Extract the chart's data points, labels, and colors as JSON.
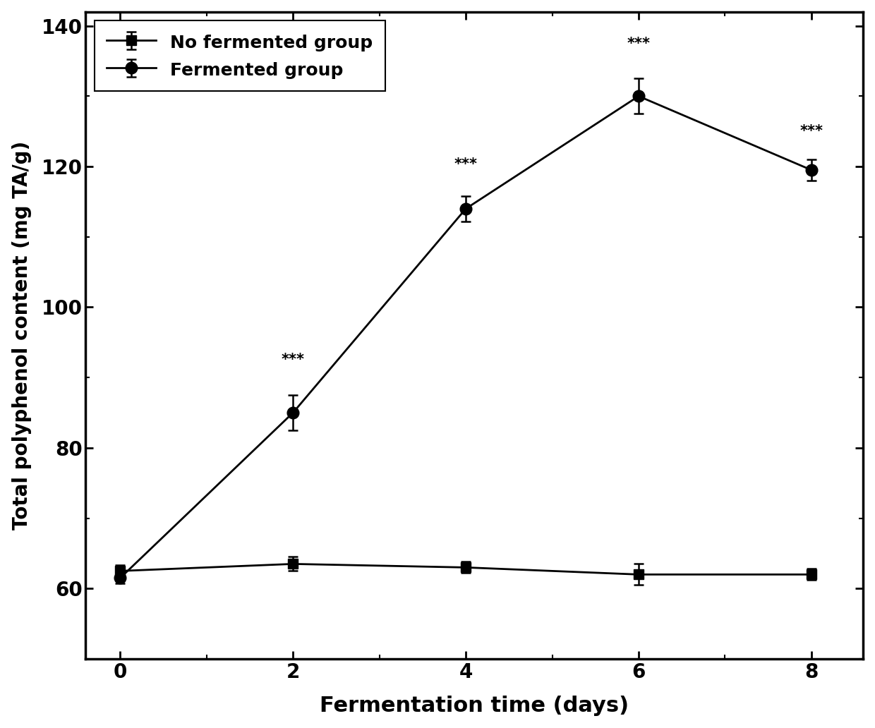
{
  "x": [
    0,
    2,
    4,
    6,
    8
  ],
  "no_fermented_y": [
    62.5,
    63.5,
    63.0,
    62.0,
    62.0
  ],
  "no_fermented_err": [
    0.8,
    1.0,
    0.8,
    1.5,
    0.8
  ],
  "fermented_y": [
    61.5,
    85.0,
    114.0,
    130.0,
    119.5
  ],
  "fermented_err": [
    0.8,
    2.5,
    1.8,
    2.5,
    1.5
  ],
  "annotations": {
    "x": [
      2,
      4,
      6,
      8
    ],
    "fermented_labels": [
      "***",
      "***",
      "***",
      "***"
    ],
    "fermented_label_offsets": [
      4.0,
      3.5,
      4.0,
      3.0
    ]
  },
  "xlabel": "Fermentation time (days)",
  "ylabel": "Total polyphenol content (mg TA/g)",
  "xlim": [
    -0.4,
    8.6
  ],
  "ylim": [
    50,
    142
  ],
  "yticks": [
    60,
    80,
    100,
    120,
    140
  ],
  "xticks": [
    0,
    2,
    4,
    6,
    8
  ],
  "legend_labels": [
    "No fermented group",
    "Fermented group"
  ],
  "line_color": "#000000",
  "no_fermented_marker": "s",
  "fermented_marker": "o",
  "no_fermented_markersize": 10,
  "fermented_markersize": 12,
  "linewidth": 2.0,
  "xlabel_fontsize": 22,
  "ylabel_fontsize": 20,
  "tick_fontsize": 20,
  "legend_fontsize": 18,
  "annotation_fontsize": 15,
  "background_color": "#ffffff"
}
